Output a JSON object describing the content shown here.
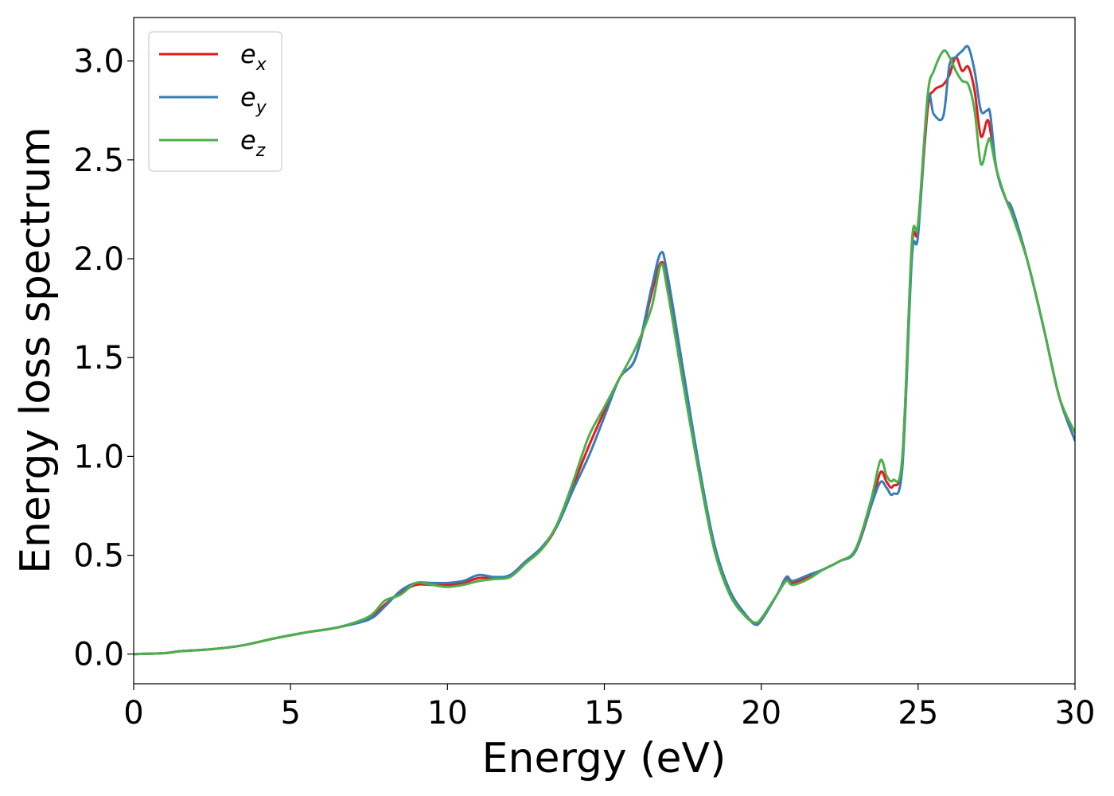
{
  "chart_data": {
    "type": "line",
    "title": "",
    "xlabel": "Energy (eV)",
    "ylabel": "Energy loss spectrum",
    "xlim": [
      0,
      30
    ],
    "ylim": [
      -0.15,
      3.22
    ],
    "xticks": [
      0,
      5,
      10,
      15,
      20,
      25,
      30
    ],
    "xtick_labels": [
      "0",
      "5",
      "10",
      "15",
      "20",
      "25",
      "30"
    ],
    "yticks": [
      0.0,
      0.5,
      1.0,
      1.5,
      2.0,
      2.5,
      3.0
    ],
    "ytick_labels": [
      "0.0",
      "0.5",
      "1.0",
      "1.5",
      "2.0",
      "2.5",
      "3.0"
    ],
    "grid": false,
    "legend_position": "top-left",
    "series": [
      {
        "legend_main": "e",
        "legend_sub": "x",
        "color": "#e41a1c",
        "x": [
          0,
          1,
          1.5,
          2.5,
          3.5,
          4.5,
          5.5,
          6.5,
          7.5,
          8,
          8.5,
          9,
          9.5,
          10,
          10.5,
          11,
          11.5,
          12,
          12.5,
          13,
          13.5,
          14,
          14.5,
          15,
          15.5,
          16,
          16.5,
          16.8,
          17,
          17.5,
          18,
          18.5,
          19,
          19.5,
          19.8,
          20,
          20.5,
          20.8,
          21,
          21.5,
          22,
          22.5,
          23,
          23.5,
          23.8,
          24,
          24.2,
          24.5,
          24.8,
          25,
          25.3,
          25.5,
          25.8,
          26,
          26.2,
          26.4,
          26.6,
          26.8,
          27,
          27.2,
          27.3,
          27.5,
          27.8,
          28,
          28.5,
          29,
          29.5,
          30
        ],
        "y": [
          0.0,
          0.005,
          0.015,
          0.025,
          0.045,
          0.08,
          0.11,
          0.135,
          0.18,
          0.25,
          0.31,
          0.35,
          0.35,
          0.35,
          0.36,
          0.385,
          0.385,
          0.4,
          0.47,
          0.53,
          0.65,
          0.85,
          1.05,
          1.23,
          1.4,
          1.5,
          1.82,
          1.98,
          1.88,
          1.4,
          0.95,
          0.55,
          0.32,
          0.2,
          0.155,
          0.17,
          0.3,
          0.38,
          0.36,
          0.39,
          0.43,
          0.47,
          0.52,
          0.75,
          0.92,
          0.87,
          0.85,
          1.0,
          2.05,
          2.15,
          2.75,
          2.85,
          2.88,
          2.93,
          3.02,
          2.95,
          2.97,
          2.85,
          2.62,
          2.7,
          2.65,
          2.45,
          2.3,
          2.25,
          1.98,
          1.65,
          1.3,
          1.08
        ]
      },
      {
        "legend_main": "e",
        "legend_sub": "y",
        "color": "#377eb8",
        "x": [
          0,
          1,
          1.5,
          2.5,
          3.5,
          4.5,
          5.5,
          6.5,
          7.5,
          8,
          8.5,
          9,
          9.5,
          10,
          10.5,
          11,
          11.5,
          12,
          12.5,
          13,
          13.5,
          14,
          14.5,
          15,
          15.5,
          16,
          16.5,
          16.8,
          17,
          17.5,
          18,
          18.5,
          19,
          19.5,
          19.8,
          20,
          20.5,
          20.8,
          21,
          21.5,
          22,
          22.5,
          23,
          23.5,
          23.8,
          24,
          24.2,
          24.5,
          24.8,
          25,
          25.3,
          25.5,
          25.8,
          26,
          26.2,
          26.4,
          26.6,
          26.8,
          27,
          27.2,
          27.3,
          27.5,
          27.8,
          28,
          28.5,
          29,
          29.5,
          30
        ],
        "y": [
          0.0,
          0.005,
          0.015,
          0.025,
          0.045,
          0.08,
          0.11,
          0.135,
          0.175,
          0.24,
          0.32,
          0.36,
          0.36,
          0.36,
          0.37,
          0.4,
          0.39,
          0.4,
          0.47,
          0.54,
          0.65,
          0.83,
          1.0,
          1.2,
          1.4,
          1.5,
          1.85,
          2.03,
          1.93,
          1.45,
          0.97,
          0.56,
          0.32,
          0.2,
          0.15,
          0.17,
          0.3,
          0.39,
          0.37,
          0.4,
          0.43,
          0.47,
          0.52,
          0.75,
          0.87,
          0.84,
          0.81,
          0.95,
          2.0,
          2.12,
          2.8,
          2.73,
          2.72,
          2.98,
          3.02,
          3.05,
          3.07,
          2.95,
          2.75,
          2.75,
          2.73,
          2.45,
          2.3,
          2.25,
          1.98,
          1.65,
          1.3,
          1.08
        ]
      },
      {
        "legend_main": "e",
        "legend_sub": "z",
        "color": "#4daf4a",
        "x": [
          0,
          1,
          1.5,
          2.5,
          3.5,
          4.5,
          5.5,
          6.5,
          7.5,
          8,
          8.5,
          9,
          9.5,
          10,
          10.5,
          11,
          11.5,
          12,
          12.5,
          13,
          13.5,
          14,
          14.5,
          15,
          15.5,
          16,
          16.5,
          16.8,
          17,
          17.5,
          18,
          18.5,
          19,
          19.5,
          19.8,
          20,
          20.5,
          20.8,
          21,
          21.5,
          22,
          22.5,
          23,
          23.5,
          23.8,
          24,
          24.2,
          24.5,
          24.8,
          25,
          25.3,
          25.5,
          25.8,
          26,
          26.2,
          26.4,
          26.6,
          26.8,
          27,
          27.2,
          27.3,
          27.5,
          27.8,
          28,
          28.5,
          29,
          29.5,
          30
        ],
        "y": [
          0.0,
          0.005,
          0.015,
          0.025,
          0.045,
          0.08,
          0.11,
          0.135,
          0.19,
          0.27,
          0.3,
          0.36,
          0.35,
          0.34,
          0.35,
          0.37,
          0.38,
          0.39,
          0.46,
          0.53,
          0.66,
          0.87,
          1.1,
          1.25,
          1.4,
          1.55,
          1.75,
          1.97,
          1.85,
          1.38,
          0.93,
          0.53,
          0.3,
          0.19,
          0.16,
          0.18,
          0.3,
          0.37,
          0.35,
          0.38,
          0.43,
          0.47,
          0.53,
          0.78,
          0.98,
          0.9,
          0.88,
          1.0,
          2.08,
          2.18,
          2.82,
          2.95,
          3.05,
          3.02,
          2.95,
          2.9,
          2.88,
          2.75,
          2.48,
          2.58,
          2.6,
          2.45,
          2.3,
          2.22,
          1.98,
          1.65,
          1.3,
          1.12
        ]
      }
    ]
  }
}
